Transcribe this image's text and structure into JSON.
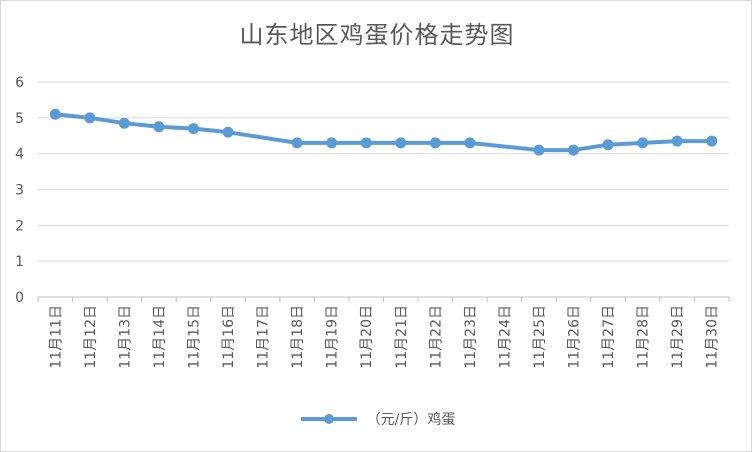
{
  "chart_data": {
    "type": "line",
    "title": "山东地区鸡蛋价格走势图",
    "categories": [
      "11月11日",
      "11月12日",
      "11月13日",
      "11月14日",
      "11月15日",
      "11月16日",
      "11月17日",
      "11月18日",
      "11月19日",
      "11月20日",
      "11月21日",
      "11月22日",
      "11月23日",
      "11月24日",
      "11月25日",
      "11月26日",
      "11月27日",
      "11月28日",
      "11月29日",
      "11月30日"
    ],
    "series": [
      {
        "name": "（元/斤）鸡蛋",
        "color": "#5b9bd5",
        "values": [
          5.1,
          5.0,
          4.85,
          4.75,
          4.7,
          4.6,
          null,
          4.3,
          4.3,
          4.3,
          4.3,
          4.3,
          4.3,
          null,
          4.1,
          4.1,
          4.25,
          4.3,
          4.35,
          4.35
        ]
      }
    ],
    "ylim": [
      0,
      6
    ],
    "yticks": [
      "0",
      "1",
      "2",
      "3",
      "4",
      "5",
      "6"
    ],
    "grid": true,
    "legend_position": "bottom",
    "xlabel": "",
    "ylabel": ""
  }
}
